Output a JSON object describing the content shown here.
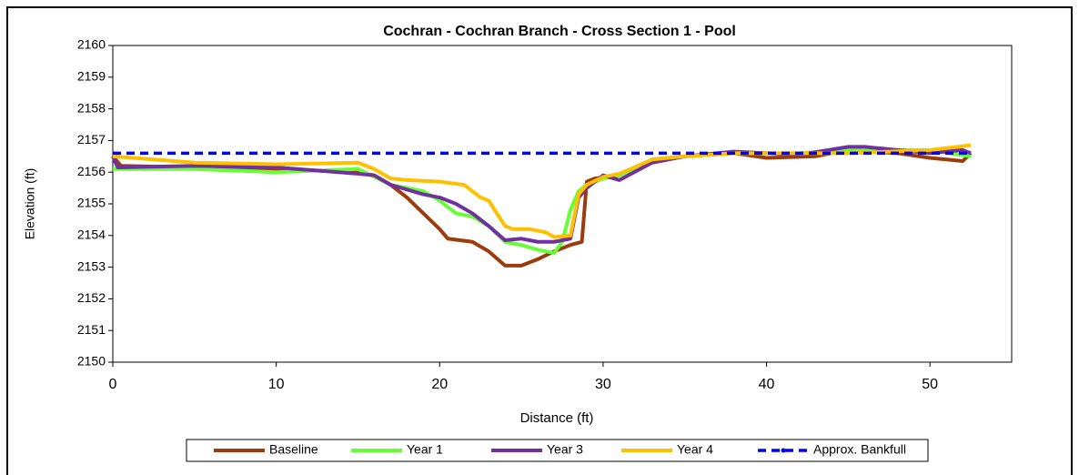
{
  "chart_data": {
    "type": "line",
    "title": "Cochran - Cochran Branch - Cross Section 1 - Pool",
    "x_label": "Distance (ft)",
    "y_label": "Elevation (ft)",
    "xlim": [
      0,
      55
    ],
    "xticks": [
      0,
      10,
      20,
      30,
      40,
      50
    ],
    "ylim": [
      2150,
      2160
    ],
    "yticks": [
      2150,
      2151,
      2152,
      2153,
      2154,
      2155,
      2156,
      2157,
      2158,
      2159,
      2160
    ],
    "legend": "bottom",
    "series": [
      {
        "name": "Baseline",
        "color": "#9c3b0c",
        "dash": false,
        "x": [
          0,
          0.5,
          5,
          10,
          15,
          16,
          17,
          18,
          19,
          20,
          20.5,
          22,
          23,
          24,
          25,
          26,
          27,
          28,
          28.7,
          29,
          29.5,
          31,
          33,
          35,
          38,
          40,
          43,
          45,
          48,
          50,
          52,
          52.5
        ],
        "values": [
          2156.5,
          2156.2,
          2156.15,
          2156.1,
          2156.0,
          2155.9,
          2155.6,
          2155.2,
          2154.7,
          2154.2,
          2153.9,
          2153.8,
          2153.5,
          2153.05,
          2153.05,
          2153.25,
          2153.5,
          2153.7,
          2153.8,
          2155.7,
          2155.8,
          2155.9,
          2156.4,
          2156.5,
          2156.6,
          2156.45,
          2156.5,
          2156.7,
          2156.6,
          2156.45,
          2156.35,
          2156.6
        ]
      },
      {
        "name": "Year 1",
        "color": "#66ff33",
        "dash": false,
        "x": [
          0,
          5,
          10,
          15,
          17,
          19,
          20,
          21,
          22,
          23,
          24,
          25,
          26,
          27,
          27.5,
          28,
          28.5,
          29,
          30,
          31,
          33,
          35,
          38,
          42,
          45,
          50,
          52.5
        ],
        "values": [
          2156.1,
          2156.1,
          2156.0,
          2156.1,
          2155.6,
          2155.4,
          2155.1,
          2154.7,
          2154.6,
          2154.3,
          2153.8,
          2153.7,
          2153.55,
          2153.45,
          2153.8,
          2154.8,
          2155.4,
          2155.6,
          2155.8,
          2155.9,
          2156.4,
          2156.5,
          2156.6,
          2156.6,
          2156.7,
          2156.7,
          2156.5
        ]
      },
      {
        "name": "Year 3",
        "color": "#7030a0",
        "dash": false,
        "x": [
          0,
          0.3,
          5,
          10,
          15,
          16,
          17,
          19,
          20,
          21,
          22,
          23,
          24,
          25,
          26,
          27,
          28,
          28.5,
          29,
          29.5,
          30,
          31,
          33,
          35,
          38,
          42,
          45,
          46,
          48,
          50,
          52,
          52.5
        ],
        "values": [
          2156.5,
          2156.15,
          2156.2,
          2156.15,
          2155.95,
          2155.9,
          2155.6,
          2155.3,
          2155.2,
          2155.0,
          2154.7,
          2154.3,
          2153.85,
          2153.9,
          2153.8,
          2153.8,
          2153.9,
          2155.2,
          2155.5,
          2155.7,
          2155.9,
          2155.75,
          2156.3,
          2156.5,
          2156.65,
          2156.55,
          2156.8,
          2156.8,
          2156.7,
          2156.6,
          2156.7,
          2156.6
        ]
      },
      {
        "name": "Year 4",
        "color": "#ffc000",
        "dash": false,
        "x": [
          0,
          5,
          10,
          15,
          16,
          17,
          18,
          20,
          21.5,
          22.5,
          23,
          24,
          24.5,
          25.5,
          26.5,
          27,
          28,
          28.5,
          29,
          30,
          31,
          33,
          35,
          38,
          45,
          50,
          52.5
        ],
        "values": [
          2156.5,
          2156.3,
          2156.25,
          2156.3,
          2156.1,
          2155.8,
          2155.75,
          2155.7,
          2155.6,
          2155.2,
          2155.1,
          2154.3,
          2154.2,
          2154.2,
          2154.1,
          2153.95,
          2154.0,
          2155.3,
          2155.6,
          2155.85,
          2155.95,
          2156.4,
          2156.5,
          2156.6,
          2156.6,
          2156.7,
          2156.85
        ]
      },
      {
        "name": "Approx. Bankfull",
        "color": "#0000ff",
        "dash": true,
        "x": [
          0,
          52.5
        ],
        "values": [
          2156.6,
          2156.6
        ]
      }
    ]
  }
}
